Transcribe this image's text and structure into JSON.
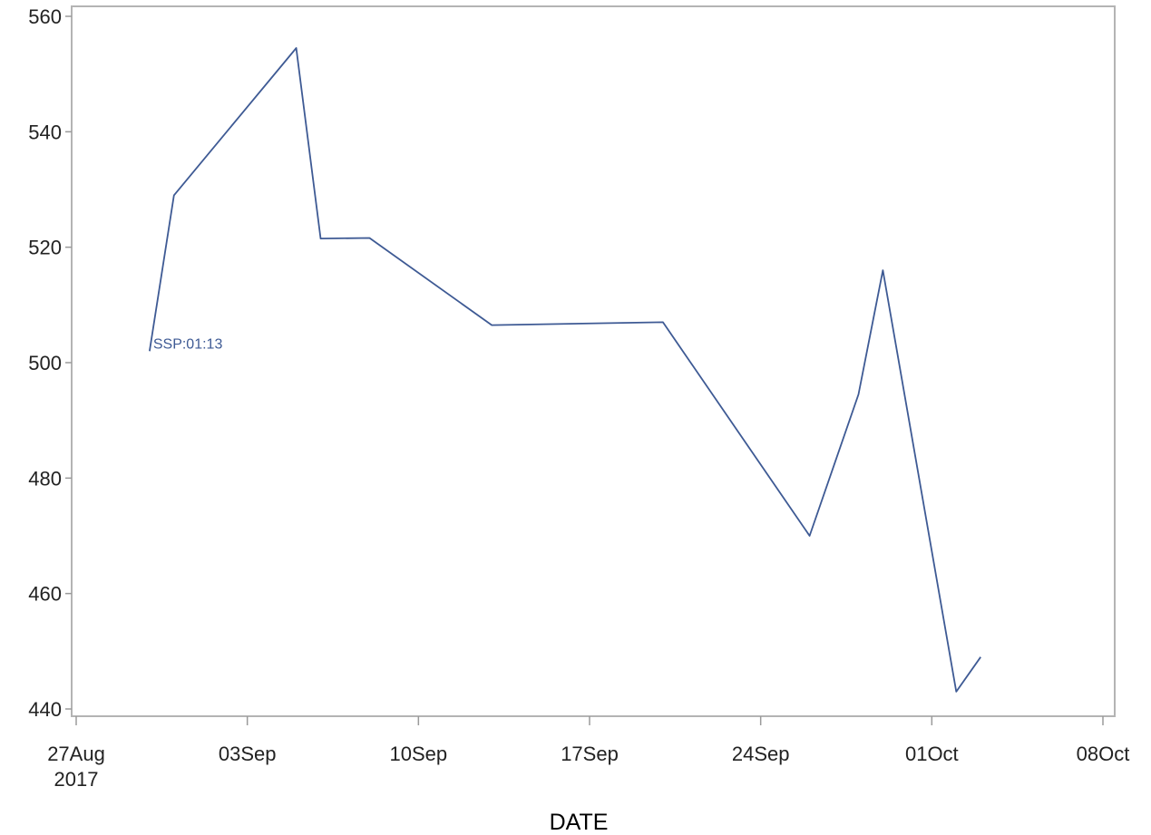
{
  "chart_data": {
    "type": "line",
    "title": "",
    "xlabel": "DATE",
    "ylabel": "",
    "x_axis": {
      "type": "date",
      "range": [
        "2017-08-27",
        "2017-10-08"
      ],
      "ticks": [
        {
          "date": "2017-08-27",
          "label": "27Aug",
          "sublabel": "2017"
        },
        {
          "date": "2017-09-03",
          "label": "03Sep"
        },
        {
          "date": "2017-09-10",
          "label": "10Sep"
        },
        {
          "date": "2017-09-17",
          "label": "17Sep"
        },
        {
          "date": "2017-09-24",
          "label": "24Sep"
        },
        {
          "date": "2017-10-01",
          "label": "01Oct"
        },
        {
          "date": "2017-10-08",
          "label": "08Oct"
        }
      ]
    },
    "y_axis": {
      "range": [
        440,
        560
      ],
      "ticks": [
        440,
        460,
        480,
        500,
        520,
        540,
        560
      ]
    },
    "grid": false,
    "series": [
      {
        "label": "SSP:01:13",
        "color": "#3e5a94",
        "points": [
          {
            "x": "2017-08-30",
            "y": 502
          },
          {
            "x": "2017-08-31",
            "y": 529
          },
          {
            "x": "2017-09-05",
            "y": 554.5
          },
          {
            "x": "2017-09-06",
            "y": 521.5
          },
          {
            "x": "2017-09-08",
            "y": 521.6
          },
          {
            "x": "2017-09-13",
            "y": 506.5
          },
          {
            "x": "2017-09-20",
            "y": 507
          },
          {
            "x": "2017-09-26",
            "y": 470
          },
          {
            "x": "2017-09-28",
            "y": 494.5
          },
          {
            "x": "2017-09-29",
            "y": 516
          },
          {
            "x": "2017-10-02",
            "y": 443
          },
          {
            "x": "2017-10-03",
            "y": 449
          }
        ]
      }
    ]
  }
}
